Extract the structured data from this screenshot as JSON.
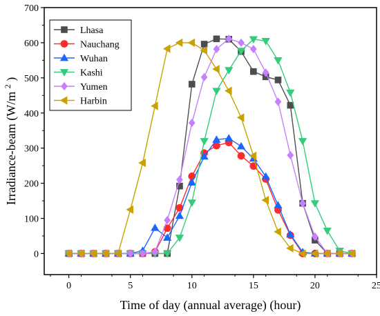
{
  "chart_data": {
    "type": "line",
    "xlabel": "Time of day  (annual average) (hour)",
    "ylabel_main": "Irradiance-beam (W/m",
    "ylabel_sup": "2",
    "ylabel_close": ")",
    "xlim": [
      -2,
      25
    ],
    "ylim": [
      -60,
      700
    ],
    "xticks": [
      0,
      5,
      10,
      15,
      20,
      25
    ],
    "yticks": [
      0,
      100,
      200,
      300,
      400,
      500,
      600,
      700
    ],
    "x": [
      0,
      1,
      2,
      3,
      4,
      5,
      6,
      7,
      8,
      9,
      10,
      11,
      12,
      13,
      14,
      15,
      16,
      17,
      18,
      19,
      20,
      21,
      22,
      23
    ],
    "legend_position": "top-left",
    "grid": false,
    "series": [
      {
        "name": "Lhasa",
        "color": "#4d4d4d",
        "marker": "square",
        "values": [
          0,
          0,
          0,
          0,
          0,
          0,
          0,
          0,
          0,
          192,
          482,
          596,
          611,
          610,
          575,
          518,
          503,
          494,
          422,
          143,
          38,
          0,
          0,
          0
        ]
      },
      {
        "name": "Nauchang",
        "color": "#ff2a2a",
        "marker": "circle",
        "values": [
          0,
          0,
          0,
          0,
          0,
          0,
          0,
          5,
          72,
          130,
          220,
          286,
          307,
          316,
          278,
          249,
          212,
          124,
          52,
          0,
          0,
          0,
          0,
          0
        ]
      },
      {
        "name": "Wuhan",
        "color": "#1a66ff",
        "marker": "triangle-up",
        "values": [
          0,
          0,
          0,
          0,
          0,
          0,
          8,
          73,
          45,
          107,
          202,
          276,
          324,
          328,
          305,
          270,
          219,
          137,
          54,
          4,
          0,
          0,
          0,
          0
        ]
      },
      {
        "name": "Kashi",
        "color": "#33cc7a",
        "marker": "triangle-down",
        "values": [
          0,
          0,
          0,
          0,
          0,
          0,
          0,
          0,
          0,
          45,
          145,
          320,
          463,
          522,
          577,
          610,
          605,
          550,
          458,
          320,
          143,
          65,
          8,
          0
        ]
      },
      {
        "name": "Yumen",
        "color": "#c87fff",
        "marker": "diamond",
        "values": [
          0,
          0,
          0,
          0,
          0,
          0,
          0,
          5,
          95,
          210,
          372,
          502,
          582,
          611,
          600,
          582,
          515,
          432,
          280,
          143,
          48,
          0,
          0,
          0
        ]
      },
      {
        "name": "Harbin",
        "color": "#c9a200",
        "marker": "triangle-left",
        "values": [
          0,
          0,
          0,
          0,
          0,
          125,
          258,
          420,
          583,
          600,
          600,
          578,
          525,
          463,
          387,
          278,
          152,
          62,
          15,
          0,
          0,
          0,
          0,
          0
        ]
      }
    ]
  }
}
